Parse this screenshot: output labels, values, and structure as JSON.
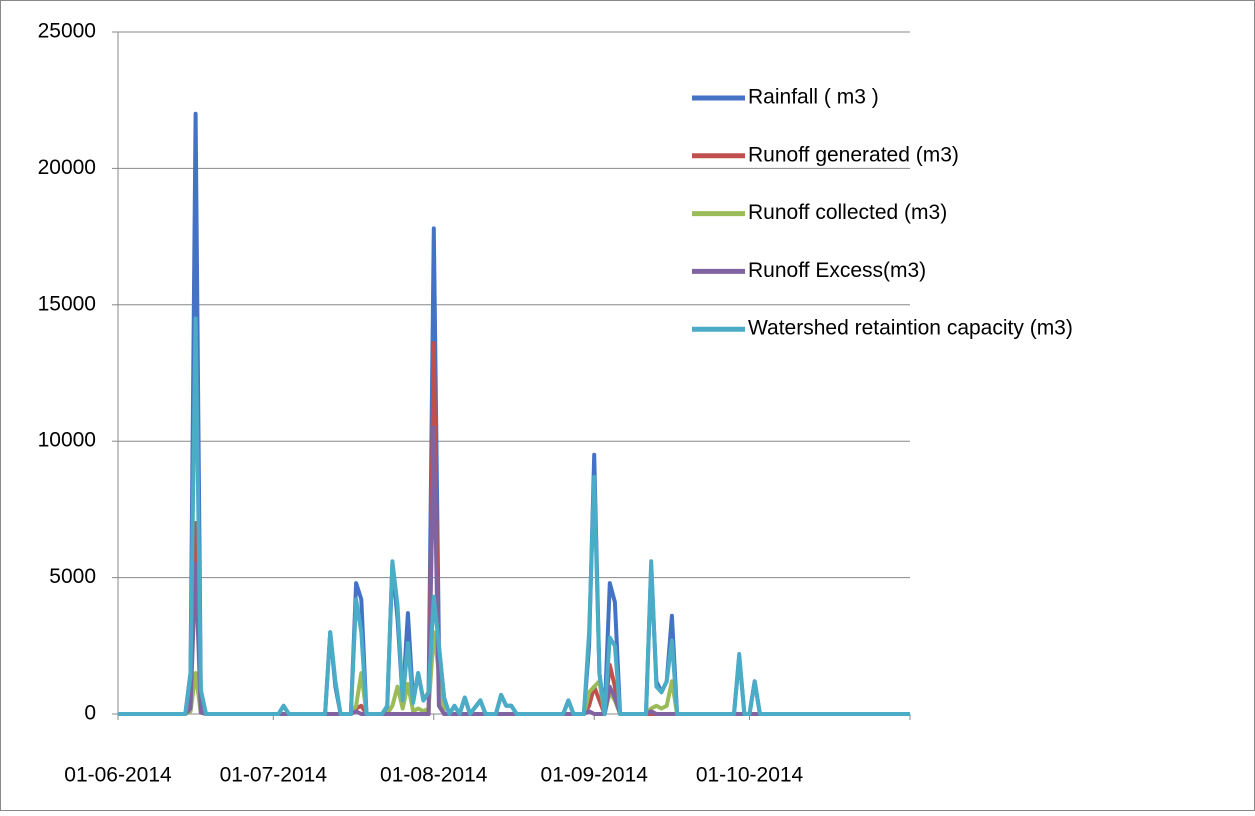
{
  "chart_data": {
    "type": "line",
    "x": [
      "01-06-2014",
      "14-06-2014",
      "15-06-2014",
      "16-06-2014",
      "17-06-2014",
      "18-06-2014",
      "02-07-2014",
      "03-07-2014",
      "04-07-2014",
      "11-07-2014",
      "12-07-2014",
      "13-07-2014",
      "14-07-2014",
      "16-07-2014",
      "17-07-2014",
      "18-07-2014",
      "19-07-2014",
      "22-07-2014",
      "23-07-2014",
      "24-07-2014",
      "25-07-2014",
      "26-07-2014",
      "27-07-2014",
      "28-07-2014",
      "29-07-2014",
      "30-07-2014",
      "31-07-2014",
      "01-08-2014",
      "02-08-2014",
      "03-08-2014",
      "04-08-2014",
      "05-08-2014",
      "06-08-2014",
      "07-08-2014",
      "08-08-2014",
      "10-08-2014",
      "11-08-2014",
      "13-08-2014",
      "14-08-2014",
      "15-08-2014",
      "16-08-2014",
      "17-08-2014",
      "26-08-2014",
      "27-08-2014",
      "28-08-2014",
      "30-08-2014",
      "31-08-2014",
      "01-09-2014",
      "02-09-2014",
      "03-09-2014",
      "04-09-2014",
      "05-09-2014",
      "06-09-2014",
      "11-09-2014",
      "12-09-2014",
      "13-09-2014",
      "14-09-2014",
      "15-09-2014",
      "16-09-2014",
      "17-09-2014",
      "28-09-2014",
      "29-09-2014",
      "30-09-2014",
      "01-10-2014",
      "02-10-2014",
      "03-10-2014",
      "01-11-2014"
    ],
    "series": [
      {
        "name": "Rainfall ( m3 )",
        "color": "#4472c4",
        "values": [
          0,
          0,
          1500,
          22000,
          800,
          0,
          0,
          300,
          0,
          0,
          3000,
          1000,
          0,
          0,
          4800,
          4200,
          0,
          0,
          200,
          5500,
          3500,
          500,
          3700,
          500,
          1500,
          500,
          800,
          17800,
          2500,
          600,
          0,
          300,
          0,
          600,
          0,
          500,
          0,
          0,
          700,
          300,
          300,
          0,
          0,
          500,
          0,
          0,
          2500,
          9500,
          1500,
          0,
          4800,
          4100,
          0,
          0,
          5400,
          1200,
          800,
          1200,
          3600,
          0,
          0,
          2100,
          0,
          0,
          1200,
          0,
          0
        ]
      },
      {
        "name": "Runoff generated (m3)",
        "color": "#c0504d",
        "values": [
          0,
          0,
          300,
          7000,
          100,
          0,
          0,
          0,
          0,
          0,
          0,
          0,
          0,
          0,
          200,
          300,
          0,
          0,
          0,
          0,
          0,
          0,
          0,
          0,
          0,
          0,
          0,
          13600,
          1000,
          0,
          0,
          0,
          0,
          0,
          0,
          0,
          0,
          0,
          0,
          0,
          0,
          0,
          0,
          0,
          0,
          0,
          300,
          1000,
          500,
          0,
          1800,
          1000,
          0,
          0,
          0,
          0,
          0,
          0,
          0,
          0,
          0,
          0,
          0,
          0,
          0,
          0,
          0
        ]
      },
      {
        "name": "Runoff collected (m3)",
        "color": "#9bbb59",
        "values": [
          0,
          0,
          100,
          1500,
          50,
          0,
          0,
          0,
          0,
          0,
          0,
          0,
          0,
          0,
          300,
          1500,
          0,
          0,
          0,
          300,
          1000,
          200,
          1100,
          100,
          200,
          100,
          200,
          3000,
          1500,
          0,
          0,
          0,
          0,
          0,
          0,
          0,
          0,
          0,
          0,
          0,
          0,
          0,
          0,
          0,
          0,
          0,
          800,
          1000,
          1200,
          0,
          800,
          500,
          0,
          0,
          200,
          300,
          200,
          300,
          1200,
          0,
          0,
          0,
          0,
          0,
          0,
          0,
          0
        ]
      },
      {
        "name": "Runoff Excess(m3)",
        "color": "#8064a2",
        "values": [
          0,
          0,
          200,
          5500,
          50,
          0,
          0,
          0,
          0,
          0,
          0,
          0,
          0,
          0,
          100,
          0,
          0,
          0,
          0,
          0,
          0,
          0,
          0,
          0,
          0,
          0,
          0,
          10500,
          300,
          0,
          0,
          0,
          0,
          0,
          0,
          0,
          0,
          0,
          0,
          0,
          0,
          0,
          0,
          0,
          0,
          0,
          100,
          0,
          0,
          0,
          1000,
          600,
          0,
          0,
          100,
          0,
          0,
          0,
          0,
          0,
          0,
          0,
          0,
          0,
          0,
          0,
          0
        ]
      },
      {
        "name": "Watershed retaintion capacity  (m3)",
        "color": "#4bacc6",
        "values": [
          0,
          0,
          1400,
          14500,
          900,
          0,
          0,
          300,
          0,
          0,
          3000,
          1200,
          0,
          0,
          4200,
          3000,
          0,
          0,
          300,
          5600,
          4000,
          500,
          2600,
          400,
          1500,
          500,
          800,
          4300,
          2500,
          600,
          0,
          300,
          0,
          600,
          0,
          500,
          0,
          0,
          700,
          300,
          300,
          0,
          0,
          500,
          0,
          0,
          3000,
          8700,
          1500,
          0,
          2800,
          2500,
          0,
          0,
          5600,
          1000,
          800,
          1200,
          2700,
          0,
          0,
          2200,
          0,
          0,
          1200,
          0,
          0
        ]
      }
    ],
    "xlim": [
      "01-06-2014",
      "01-11-2014"
    ],
    "xticks": [
      "01-06-2014",
      "01-07-2014",
      "01-08-2014",
      "01-09-2014",
      "01-10-2014"
    ],
    "ylim": [
      0,
      25000
    ],
    "yticks": [
      0,
      5000,
      10000,
      15000,
      20000,
      25000
    ],
    "grid": true,
    "legend": "right"
  }
}
